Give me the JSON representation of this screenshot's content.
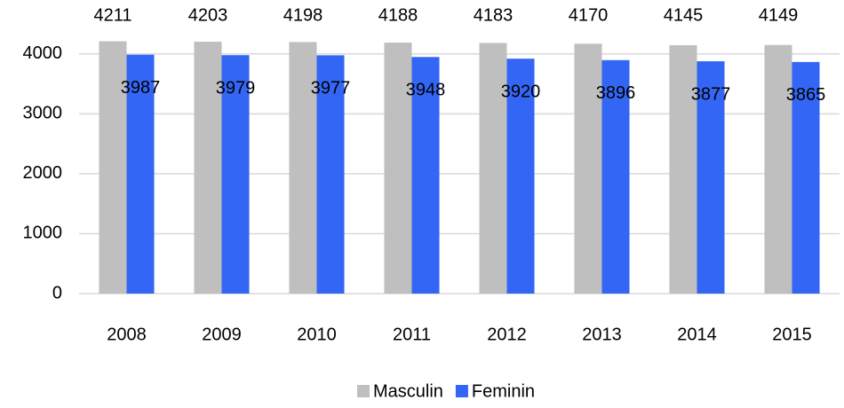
{
  "chart_data": {
    "type": "bar",
    "categories": [
      "2008",
      "2009",
      "2010",
      "2011",
      "2012",
      "2013",
      "2014",
      "2015"
    ],
    "series": [
      {
        "name": "Masculin",
        "color": "#bfbfbf",
        "values": [
          4211,
          4203,
          4198,
          4188,
          4183,
          4170,
          4145,
          4149
        ]
      },
      {
        "name": "Feminin",
        "color": "#3366f5",
        "values": [
          3987,
          3979,
          3977,
          3948,
          3920,
          3896,
          3877,
          3865
        ]
      }
    ],
    "ylim": [
      0,
      4500
    ],
    "yticks": [
      0,
      1000,
      2000,
      3000,
      4000
    ],
    "grid": true,
    "legend": "bottom"
  }
}
